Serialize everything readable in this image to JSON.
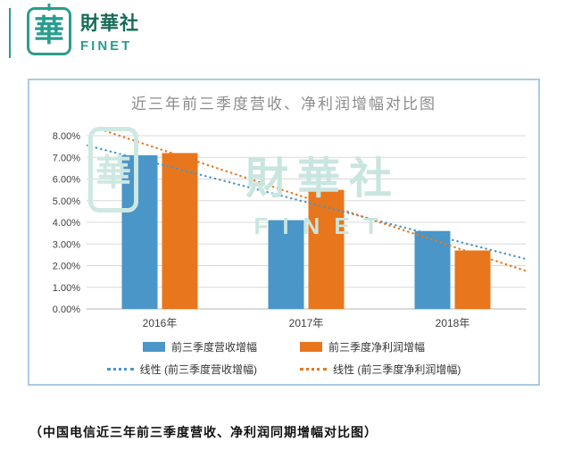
{
  "logo": {
    "seal_char": "華",
    "name": "財華社",
    "subname": "FINET",
    "accent_color": "#2a9d8f"
  },
  "watermark": {
    "seal_char": "華",
    "text": "財華社",
    "subtext": "FINET"
  },
  "caption": "（中国电信近三年前三季度营收、净利润同期增幅对比图）",
  "chart_data": {
    "type": "bar",
    "title": "近三年前三季度营收、净利润增幅对比图",
    "categories": [
      "2016年",
      "2017年",
      "2018年"
    ],
    "series": [
      {
        "name": "前三季度营收增幅",
        "color": "#4a96c8",
        "values": [
          7.1,
          4.1,
          3.6
        ]
      },
      {
        "name": "前三季度净利润增幅",
        "color": "#e8761d",
        "values": [
          7.2,
          5.5,
          2.7
        ]
      }
    ],
    "trendlines": [
      {
        "name": "线性 (前三季度营收增幅)",
        "series": 0,
        "style": "dotted",
        "color": "#4a96c8"
      },
      {
        "name": "线性 (前三季度净利润增幅)",
        "series": 1,
        "style": "dotted",
        "color": "#e8761d"
      }
    ],
    "ylim": [
      0,
      8
    ],
    "ytick_step": 1,
    "ytick_labels": [
      "0.00%",
      "1.00%",
      "2.00%",
      "3.00%",
      "4.00%",
      "5.00%",
      "6.00%",
      "7.00%",
      "8.00%"
    ],
    "grid": true,
    "legend_position": "bottom",
    "value_unit": "%"
  }
}
